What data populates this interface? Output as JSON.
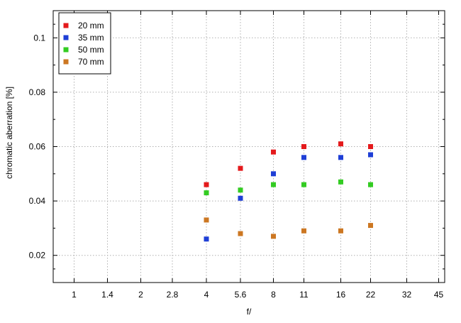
{
  "chart_data": {
    "type": "scatter",
    "title": "",
    "xlabel": "f/",
    "ylabel": "chromatic aberration [%]",
    "x_ticks": [
      "1",
      "1.4",
      "2",
      "2.8",
      "4",
      "5.6",
      "8",
      "11",
      "16",
      "22",
      "32",
      "45"
    ],
    "ylim": [
      0.01,
      0.11
    ],
    "y_ticks": [
      0.02,
      0.04,
      0.06,
      0.08,
      0.1
    ],
    "y_tick_labels": [
      "0.02",
      "0.04",
      "0.06",
      "0.08",
      "0.1"
    ],
    "grid": true,
    "legend_position": "top-left",
    "series": [
      {
        "name": "20 mm",
        "color": "#e41a1c",
        "points": [
          {
            "x": "4",
            "y": 0.046
          },
          {
            "x": "5.6",
            "y": 0.052
          },
          {
            "x": "8",
            "y": 0.058
          },
          {
            "x": "11",
            "y": 0.06
          },
          {
            "x": "16",
            "y": 0.061
          },
          {
            "x": "22",
            "y": 0.06
          }
        ]
      },
      {
        "name": "35 mm",
        "color": "#1f3fd6",
        "points": [
          {
            "x": "4",
            "y": 0.026
          },
          {
            "x": "5.6",
            "y": 0.041
          },
          {
            "x": "8",
            "y": 0.05
          },
          {
            "x": "11",
            "y": 0.056
          },
          {
            "x": "16",
            "y": 0.056
          },
          {
            "x": "22",
            "y": 0.057
          }
        ]
      },
      {
        "name": "50 mm",
        "color": "#33cc22",
        "points": [
          {
            "x": "4",
            "y": 0.043
          },
          {
            "x": "5.6",
            "y": 0.044
          },
          {
            "x": "8",
            "y": 0.046
          },
          {
            "x": "11",
            "y": 0.046
          },
          {
            "x": "16",
            "y": 0.047
          },
          {
            "x": "22",
            "y": 0.046
          }
        ]
      },
      {
        "name": "70 mm",
        "color": "#cc7722",
        "points": [
          {
            "x": "4",
            "y": 0.033
          },
          {
            "x": "5.6",
            "y": 0.028
          },
          {
            "x": "8",
            "y": 0.027
          },
          {
            "x": "11",
            "y": 0.029
          },
          {
            "x": "16",
            "y": 0.029
          },
          {
            "x": "22",
            "y": 0.031
          }
        ]
      }
    ]
  }
}
